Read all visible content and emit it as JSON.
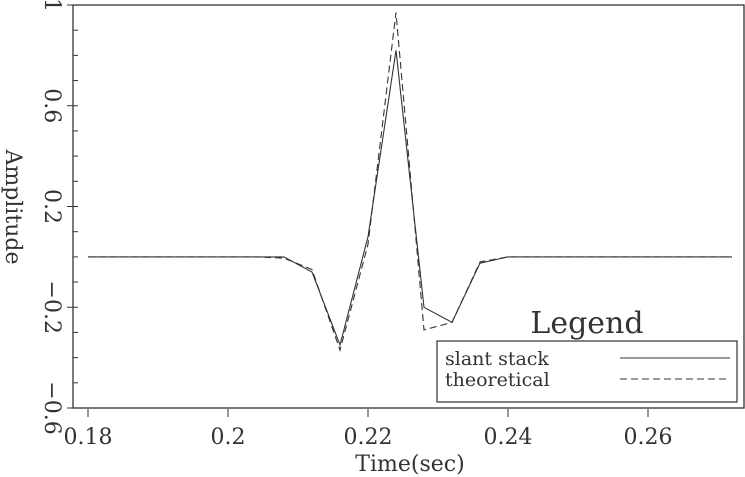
{
  "chart_data": {
    "type": "line",
    "xlabel": "Time(sec)",
    "ylabel": "Amplitude",
    "xlim": [
      0.18,
      0.28
    ],
    "ylim": [
      -0.6,
      1
    ],
    "xticks": [
      0.18,
      0.2,
      0.22,
      0.24,
      0.26
    ],
    "xtick_labels": [
      "0.18",
      "0.2",
      "0.22",
      "0.24",
      "0.26"
    ],
    "yticks": [
      1,
      0.6,
      0.2,
      -0.2,
      -0.6
    ],
    "ytick_labels": [
      "1",
      "0.6",
      "0.2",
      "−0.2",
      "−0.6"
    ],
    "grid": false,
    "legend": {
      "title": "Legend",
      "placement": "bottom-right"
    },
    "x": [
      0.18,
      0.184,
      0.188,
      0.192,
      0.196,
      0.2,
      0.204,
      0.208,
      0.212,
      0.216,
      0.22,
      0.224,
      0.228,
      0.232,
      0.236,
      0.24,
      0.244,
      0.248,
      0.252,
      0.256,
      0.26,
      0.264,
      0.268,
      0.272
    ],
    "series": [
      {
        "name": "slant stack",
        "style": "solid",
        "color": "#333333",
        "values": [
          0,
          0,
          0,
          0,
          0,
          0,
          0,
          0,
          -0.06,
          -0.35,
          0.08,
          0.82,
          -0.2,
          -0.26,
          -0.025,
          0,
          0,
          0,
          0,
          0,
          0,
          0,
          0,
          0
        ]
      },
      {
        "name": "theoretical",
        "style": "dashed",
        "color": "#333333",
        "values": [
          0,
          0,
          0,
          0,
          0,
          0,
          0,
          -0.005,
          -0.05,
          -0.37,
          0.05,
          0.97,
          -0.29,
          -0.26,
          -0.02,
          0,
          0,
          0,
          0,
          0,
          0,
          0,
          0,
          0
        ]
      }
    ]
  }
}
